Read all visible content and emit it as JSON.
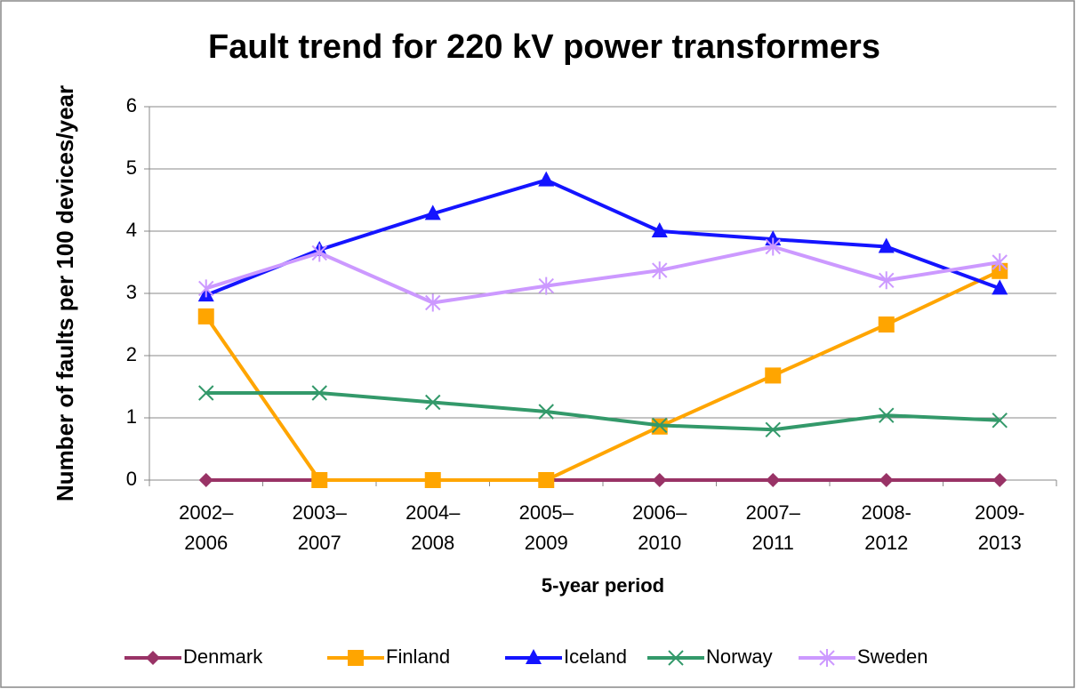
{
  "chart_data": {
    "type": "line",
    "title": "Fault trend for 220 kV power transformers",
    "x_label": "5-year period",
    "y_label": "Number of faults per 100 devices/year",
    "categories": [
      [
        "2002–",
        "2006"
      ],
      [
        "2003–",
        "2007"
      ],
      [
        "2004–",
        "2008"
      ],
      [
        "2005–",
        "2009"
      ],
      [
        "2006–",
        "2010"
      ],
      [
        "2007–",
        "2011"
      ],
      [
        "2008-",
        "2012"
      ],
      [
        "2009-",
        "2013"
      ]
    ],
    "series": [
      {
        "name": "Denmark",
        "color": "#993366",
        "marker": "diamond",
        "values": [
          0,
          0,
          0,
          0,
          0,
          0,
          0,
          0
        ]
      },
      {
        "name": "Finland",
        "color": "#ffa500",
        "marker": "square",
        "values": [
          2.63,
          0,
          0,
          0,
          0.86,
          1.68,
          2.5,
          3.36
        ]
      },
      {
        "name": "Iceland",
        "color": "#1414ff",
        "marker": "triangle",
        "values": [
          2.97,
          3.7,
          4.28,
          4.82,
          4.0,
          3.87,
          3.75,
          3.08
        ]
      },
      {
        "name": "Norway",
        "color": "#33996a",
        "marker": "x",
        "values": [
          1.4,
          1.4,
          1.25,
          1.1,
          0.88,
          0.81,
          1.04,
          0.96
        ]
      },
      {
        "name": "Sweden",
        "color": "#cc99ff",
        "marker": "star",
        "values": [
          3.08,
          3.65,
          2.85,
          3.12,
          3.37,
          3.75,
          3.21,
          3.5
        ]
      }
    ],
    "ylim": [
      0,
      6
    ],
    "yticks": [
      0,
      1,
      2,
      3,
      4,
      5,
      6
    ],
    "grid": true,
    "legend": "bottom"
  }
}
